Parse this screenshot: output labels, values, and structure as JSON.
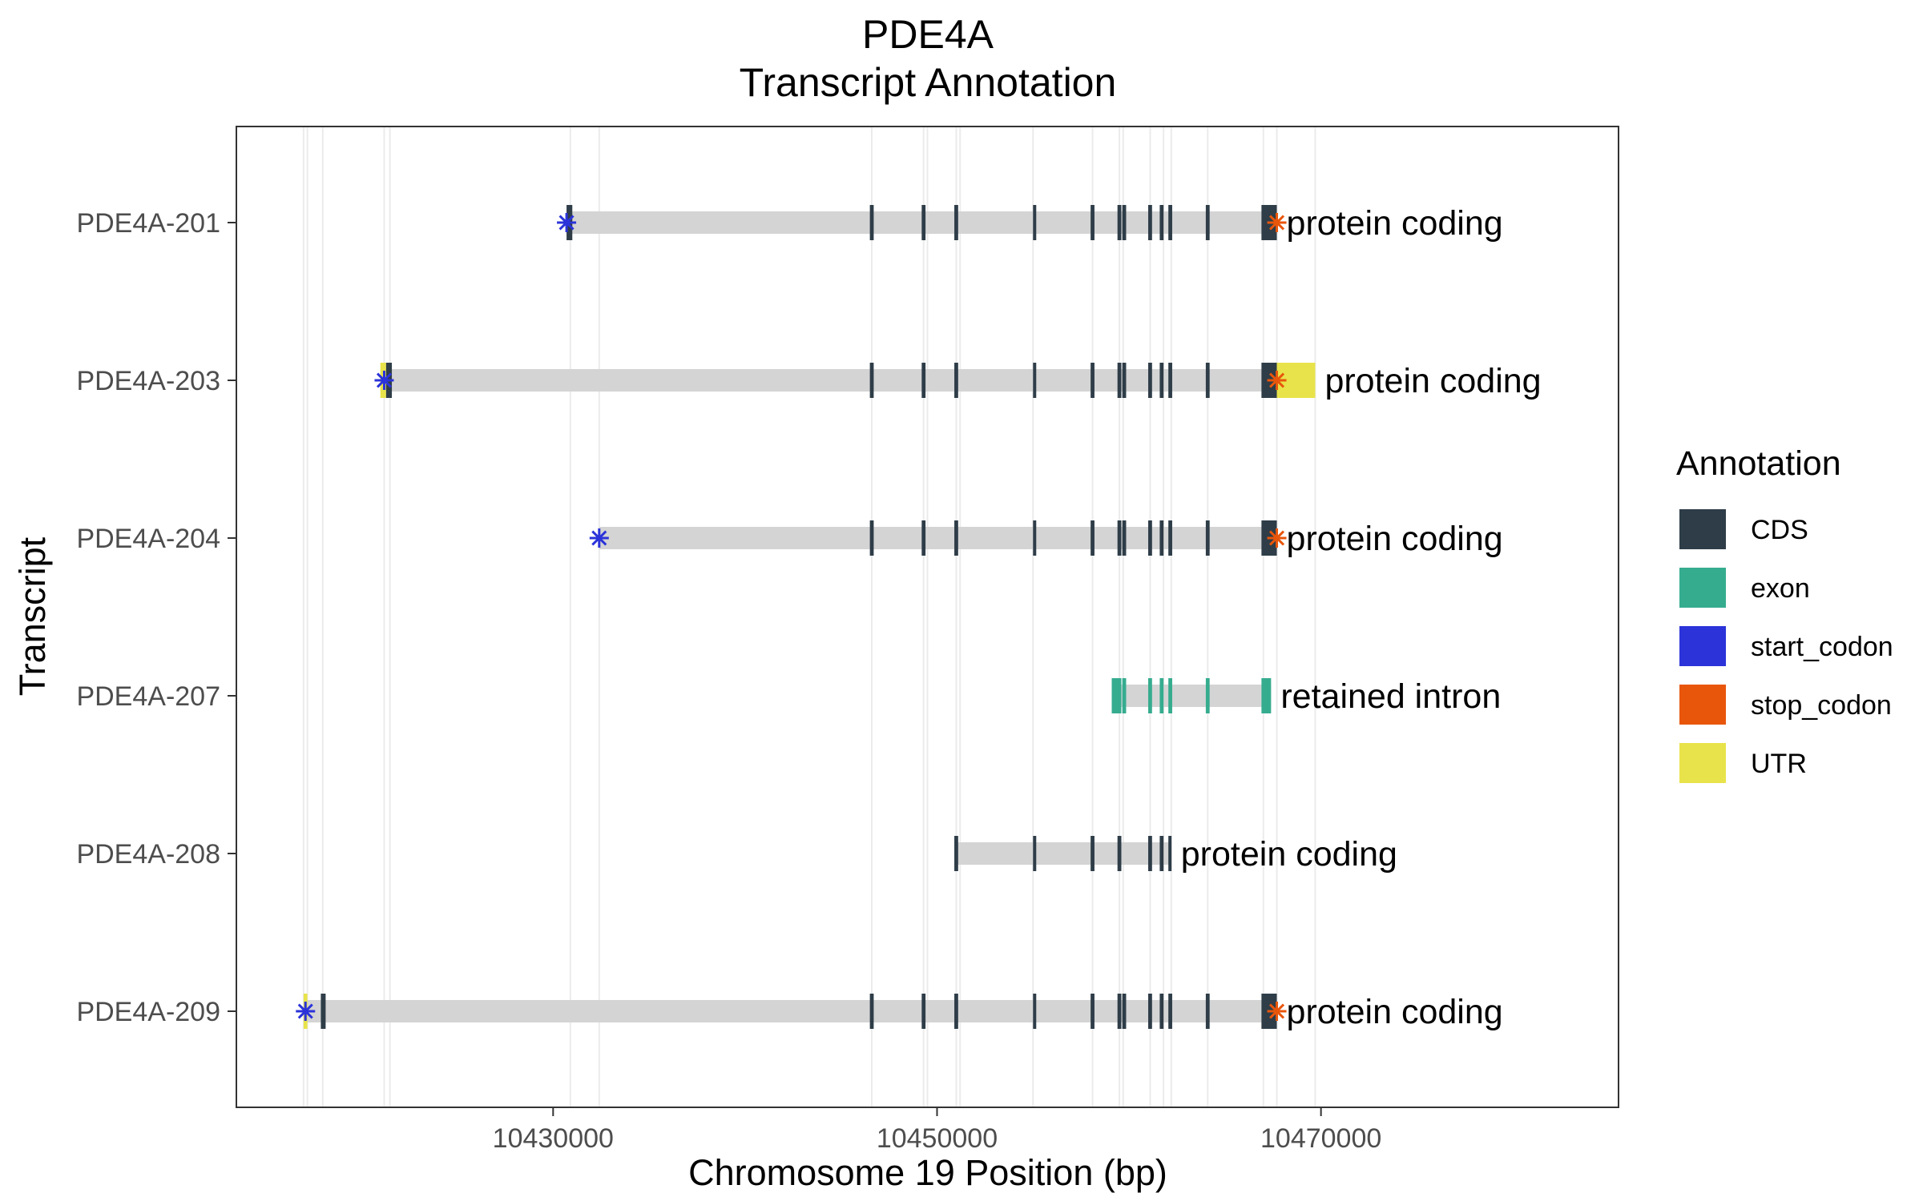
{
  "chart_data": {
    "type": "gene_track",
    "title": "PDE4A",
    "subtitle": "Transcript Annotation",
    "xlabel": "Chromosome 19 Position (bp)",
    "ylabel": "Transcript",
    "xlim": [
      10413500,
      10485500
    ],
    "x_ticks": [
      10430000,
      10450000,
      10470000
    ],
    "x_tick_labels": [
      "10430000",
      "10450000",
      "10470000"
    ],
    "grid": "vertical lines at exon boundaries",
    "legend_position": "right",
    "legend": {
      "title": "Annotation",
      "entries": [
        {
          "label": "CDS",
          "color": "#2e3d48"
        },
        {
          "label": "exon",
          "color": "#36ac8f"
        },
        {
          "label": "start_codon",
          "color": "#2b33d9"
        },
        {
          "label": "stop_codon",
          "color": "#e8560c"
        },
        {
          "label": "UTR",
          "color": "#e8e34a"
        }
      ]
    },
    "intron_color": "#d4d4d4",
    "exon_boundary_lines": [
      10417000,
      10417200,
      10418000,
      10421200,
      10421500,
      10430900,
      10432400,
      10446600,
      10449300,
      10449500,
      10451000,
      10451200,
      10455000,
      10458100,
      10459500,
      10459700,
      10461100,
      10461800,
      10462200,
      10464100,
      10467000,
      10467700,
      10469700
    ],
    "transcripts": [
      {
        "name": "PDE4A-209",
        "biotype": "protein coding",
        "span": [
          10417000,
          10467700
        ],
        "features": [
          {
            "type": "UTR",
            "start": 10417000,
            "end": 10417200
          },
          {
            "type": "CDS",
            "start": 10417900,
            "end": 10418150
          },
          {
            "type": "CDS",
            "start": 10446500,
            "end": 10446700
          },
          {
            "type": "CDS",
            "start": 10449200,
            "end": 10449400
          },
          {
            "type": "CDS",
            "start": 10450900,
            "end": 10451100
          },
          {
            "type": "CDS",
            "start": 10455000,
            "end": 10455150
          },
          {
            "type": "CDS",
            "start": 10458000,
            "end": 10458200
          },
          {
            "type": "CDS",
            "start": 10459400,
            "end": 10459600
          },
          {
            "type": "CDS",
            "start": 10459650,
            "end": 10459850
          },
          {
            "type": "CDS",
            "start": 10461000,
            "end": 10461200
          },
          {
            "type": "CDS",
            "start": 10461600,
            "end": 10461800
          },
          {
            "type": "CDS",
            "start": 10462050,
            "end": 10462250
          },
          {
            "type": "CDS",
            "start": 10464000,
            "end": 10464200
          },
          {
            "type": "CDS",
            "start": 10466900,
            "end": 10467700
          }
        ],
        "start_codon": 10417100,
        "stop_codon": 10467700
      },
      {
        "name": "PDE4A-208",
        "biotype": "protein coding",
        "span": [
          10451000,
          10462200
        ],
        "features": [
          {
            "type": "CDS",
            "start": 10450900,
            "end": 10451100
          },
          {
            "type": "CDS",
            "start": 10455000,
            "end": 10455150
          },
          {
            "type": "CDS",
            "start": 10458000,
            "end": 10458200
          },
          {
            "type": "CDS",
            "start": 10459400,
            "end": 10459600
          },
          {
            "type": "CDS",
            "start": 10461000,
            "end": 10461200
          },
          {
            "type": "CDS",
            "start": 10461600,
            "end": 10461800
          },
          {
            "type": "CDS",
            "start": 10462050,
            "end": 10462200
          }
        ],
        "start_codon": null,
        "stop_codon": null
      },
      {
        "name": "PDE4A-207",
        "biotype": "retained intron",
        "span": [
          10459100,
          10467400
        ],
        "features": [
          {
            "type": "exon",
            "start": 10459100,
            "end": 10459600
          },
          {
            "type": "exon",
            "start": 10459650,
            "end": 10459850
          },
          {
            "type": "exon",
            "start": 10461000,
            "end": 10461200
          },
          {
            "type": "exon",
            "start": 10461600,
            "end": 10461800
          },
          {
            "type": "exon",
            "start": 10462050,
            "end": 10462250
          },
          {
            "type": "exon",
            "start": 10464000,
            "end": 10464200
          },
          {
            "type": "exon",
            "start": 10466900,
            "end": 10467400
          }
        ],
        "start_codon": null,
        "stop_codon": null
      },
      {
        "name": "PDE4A-204",
        "biotype": "protein coding",
        "span": [
          10432400,
          10467700
        ],
        "features": [
          {
            "type": "CDS",
            "start": 10446500,
            "end": 10446700
          },
          {
            "type": "CDS",
            "start": 10449200,
            "end": 10449400
          },
          {
            "type": "CDS",
            "start": 10450900,
            "end": 10451100
          },
          {
            "type": "CDS",
            "start": 10455000,
            "end": 10455150
          },
          {
            "type": "CDS",
            "start": 10458000,
            "end": 10458200
          },
          {
            "type": "CDS",
            "start": 10459400,
            "end": 10459600
          },
          {
            "type": "CDS",
            "start": 10459650,
            "end": 10459850
          },
          {
            "type": "CDS",
            "start": 10461000,
            "end": 10461200
          },
          {
            "type": "CDS",
            "start": 10461600,
            "end": 10461800
          },
          {
            "type": "CDS",
            "start": 10462050,
            "end": 10462250
          },
          {
            "type": "CDS",
            "start": 10464000,
            "end": 10464200
          },
          {
            "type": "CDS",
            "start": 10466900,
            "end": 10467700
          }
        ],
        "start_codon": 10432400,
        "stop_codon": 10467700
      },
      {
        "name": "PDE4A-203",
        "biotype": "protein coding",
        "span": [
          10421000,
          10469700
        ],
        "features": [
          {
            "type": "UTR",
            "start": 10421000,
            "end": 10421300
          },
          {
            "type": "CDS",
            "start": 10421300,
            "end": 10421600
          },
          {
            "type": "CDS",
            "start": 10446500,
            "end": 10446700
          },
          {
            "type": "CDS",
            "start": 10449200,
            "end": 10449400
          },
          {
            "type": "CDS",
            "start": 10450900,
            "end": 10451100
          },
          {
            "type": "CDS",
            "start": 10455000,
            "end": 10455150
          },
          {
            "type": "CDS",
            "start": 10458000,
            "end": 10458200
          },
          {
            "type": "CDS",
            "start": 10459400,
            "end": 10459600
          },
          {
            "type": "CDS",
            "start": 10459650,
            "end": 10459850
          },
          {
            "type": "CDS",
            "start": 10461000,
            "end": 10461200
          },
          {
            "type": "CDS",
            "start": 10461600,
            "end": 10461800
          },
          {
            "type": "CDS",
            "start": 10462050,
            "end": 10462250
          },
          {
            "type": "CDS",
            "start": 10464000,
            "end": 10464200
          },
          {
            "type": "CDS",
            "start": 10466900,
            "end": 10467700
          },
          {
            "type": "UTR",
            "start": 10467700,
            "end": 10469700
          }
        ],
        "start_codon": 10421200,
        "stop_codon": 10467700
      },
      {
        "name": "PDE4A-201",
        "biotype": "protein coding",
        "span": [
          10430900,
          10467700
        ],
        "features": [
          {
            "type": "CDS",
            "start": 10430700,
            "end": 10431000
          },
          {
            "type": "CDS",
            "start": 10446500,
            "end": 10446700
          },
          {
            "type": "CDS",
            "start": 10449200,
            "end": 10449400
          },
          {
            "type": "CDS",
            "start": 10450900,
            "end": 10451100
          },
          {
            "type": "CDS",
            "start": 10455000,
            "end": 10455150
          },
          {
            "type": "CDS",
            "start": 10458000,
            "end": 10458200
          },
          {
            "type": "CDS",
            "start": 10459400,
            "end": 10459600
          },
          {
            "type": "CDS",
            "start": 10459650,
            "end": 10459850
          },
          {
            "type": "CDS",
            "start": 10461000,
            "end": 10461200
          },
          {
            "type": "CDS",
            "start": 10461600,
            "end": 10461800
          },
          {
            "type": "CDS",
            "start": 10462050,
            "end": 10462250
          },
          {
            "type": "CDS",
            "start": 10464000,
            "end": 10464200
          },
          {
            "type": "CDS",
            "start": 10466900,
            "end": 10467700
          }
        ],
        "start_codon": 10430700,
        "stop_codon": 10467700
      }
    ]
  }
}
